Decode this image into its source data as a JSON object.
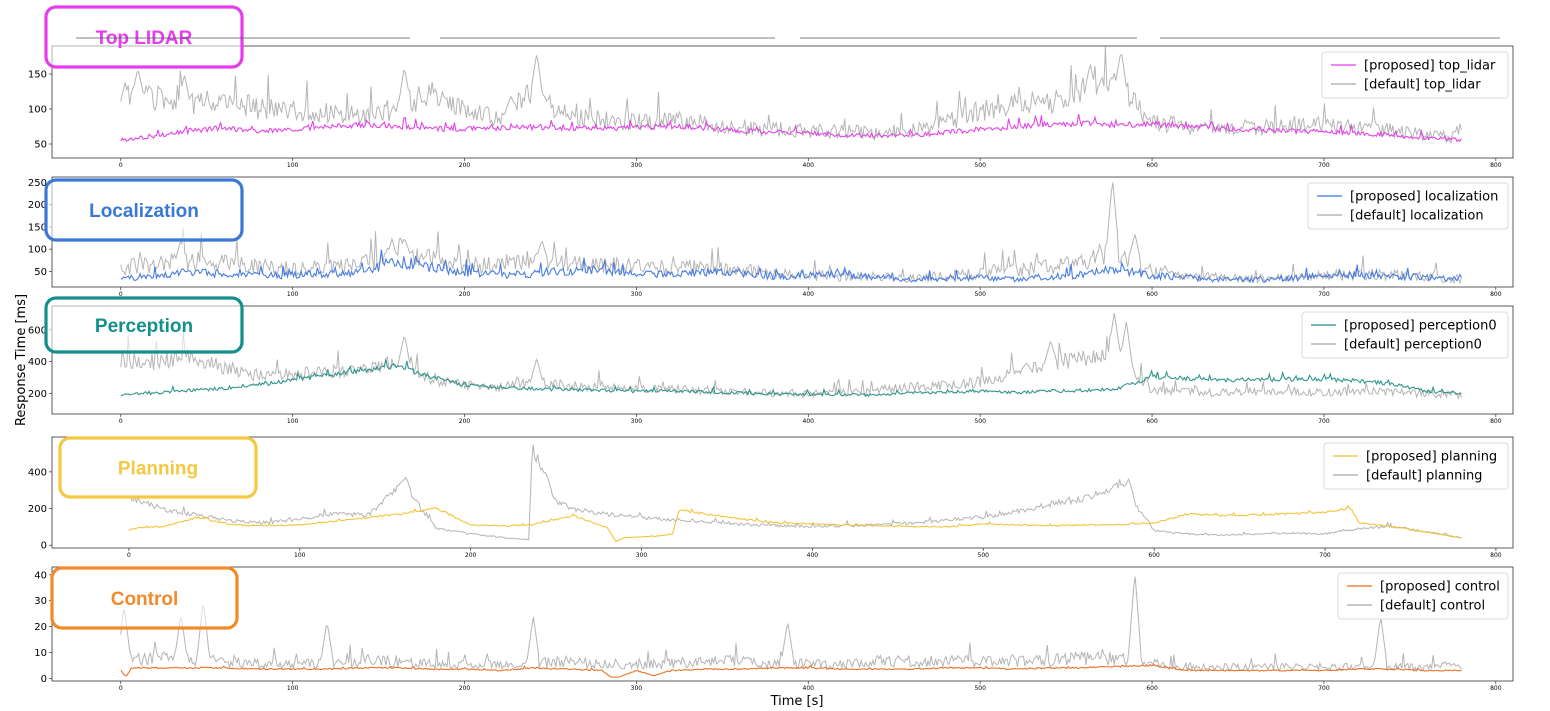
{
  "figure": {
    "ylabel": "Response Time [ms]",
    "xlabel": "Time [s]"
  },
  "chart_data": [
    {
      "type": "line",
      "callout": "Top LIDAR",
      "callout_color": "#e63cf0",
      "xlim": [
        -40,
        810
      ],
      "ylim": [
        30,
        190
      ],
      "x_ticks": [
        0,
        100,
        200,
        300,
        400,
        500,
        600,
        700,
        800
      ],
      "y_ticks": [
        50,
        100,
        150
      ],
      "legend_position": "upper right",
      "series": [
        {
          "name": "[proposed] top_lidar",
          "color": "#e23be6",
          "x": [
            0,
            20,
            40,
            60,
            80,
            100,
            120,
            140,
            160,
            180,
            200,
            220,
            240,
            260,
            280,
            300,
            320,
            340,
            360,
            380,
            400,
            420,
            440,
            460,
            480,
            500,
            520,
            540,
            560,
            580,
            600,
            620,
            640,
            660,
            680,
            700,
            720,
            740,
            760,
            780
          ],
          "y": [
            55,
            60,
            68,
            72,
            66,
            70,
            74,
            76,
            74,
            71,
            70,
            72,
            73,
            72,
            71,
            73,
            74,
            72,
            68,
            66,
            65,
            62,
            61,
            62,
            65,
            70,
            73,
            77,
            78,
            76,
            77,
            74,
            71,
            69,
            68,
            66,
            64,
            62,
            58,
            55
          ]
        },
        {
          "name": "[default] top_lidar",
          "color": "#a8a8a8",
          "x": [
            0,
            20,
            40,
            60,
            80,
            100,
            120,
            140,
            160,
            180,
            200,
            220,
            240,
            260,
            280,
            300,
            320,
            340,
            360,
            380,
            400,
            420,
            440,
            460,
            480,
            500,
            520,
            540,
            560,
            580,
            600,
            620,
            640,
            660,
            680,
            700,
            720,
            740,
            760,
            780
          ],
          "y": [
            115,
            110,
            100,
            108,
            96,
            92,
            90,
            86,
            95,
            118,
            92,
            84,
            118,
            86,
            80,
            78,
            80,
            76,
            70,
            68,
            66,
            64,
            63,
            66,
            76,
            92,
            100,
            106,
            112,
            128,
            76,
            72,
            68,
            70,
            74,
            72,
            70,
            66,
            62,
            56
          ]
        }
      ],
      "peaks": [
        {
          "series": 1,
          "x": [
            10,
            37,
            165,
            227,
            242,
            564,
            582
          ],
          "y": [
            158,
            150,
            160,
            118,
            180,
            165,
            184
          ]
        }
      ]
    },
    {
      "type": "line",
      "callout": "Localization",
      "callout_color": "#3a78d6",
      "xlim": [
        -40,
        810
      ],
      "ylim": [
        15,
        262
      ],
      "x_ticks": [
        0,
        100,
        200,
        300,
        400,
        500,
        600,
        700,
        800
      ],
      "y_ticks": [
        50,
        100,
        150,
        200,
        250
      ],
      "legend_position": "upper right",
      "series": [
        {
          "name": "[proposed] localization",
          "color": "#3f76e0",
          "x": [
            0,
            20,
            40,
            60,
            80,
            100,
            120,
            140,
            160,
            180,
            200,
            220,
            240,
            260,
            280,
            300,
            320,
            340,
            360,
            380,
            400,
            420,
            440,
            460,
            480,
            500,
            520,
            540,
            560,
            580,
            600,
            620,
            640,
            660,
            680,
            700,
            720,
            740,
            760,
            780
          ],
          "y": [
            30,
            40,
            45,
            42,
            38,
            40,
            42,
            45,
            70,
            55,
            45,
            40,
            42,
            48,
            50,
            42,
            40,
            46,
            44,
            35,
            40,
            42,
            35,
            30,
            32,
            34,
            30,
            36,
            40,
            52,
            38,
            34,
            30,
            30,
            32,
            38,
            40,
            38,
            34,
            30
          ]
        },
        {
          "name": "[default] localization",
          "color": "#a8a8a8",
          "x": [
            0,
            20,
            40,
            60,
            80,
            100,
            120,
            140,
            160,
            180,
            200,
            220,
            240,
            260,
            280,
            300,
            320,
            340,
            360,
            380,
            400,
            420,
            440,
            460,
            480,
            500,
            520,
            540,
            560,
            580,
            600,
            620,
            640,
            660,
            680,
            700,
            720,
            740,
            760,
            780
          ],
          "y": [
            55,
            60,
            68,
            62,
            55,
            52,
            55,
            58,
            90,
            70,
            58,
            60,
            72,
            62,
            58,
            55,
            52,
            55,
            50,
            40,
            38,
            36,
            34,
            33,
            36,
            42,
            48,
            55,
            62,
            90,
            45,
            35,
            32,
            30,
            34,
            36,
            40,
            38,
            34,
            30
          ]
        }
      ],
      "peaks": [
        {
          "series": 1,
          "x": [
            35,
            165,
            245,
            577,
            590
          ],
          "y": [
            120,
            125,
            120,
            258,
            135
          ]
        }
      ]
    },
    {
      "type": "line",
      "callout": "Perception",
      "callout_color": "#13908c",
      "xlim": [
        -40,
        810
      ],
      "ylim": [
        70,
        750
      ],
      "x_ticks": [
        0,
        100,
        200,
        300,
        400,
        500,
        600,
        700,
        800
      ],
      "y_ticks": [
        200,
        400,
        600
      ],
      "legend_position": "upper right",
      "series": [
        {
          "name": "[proposed] perception0",
          "color": "#268f88",
          "x": [
            0,
            20,
            40,
            60,
            80,
            100,
            120,
            140,
            160,
            180,
            200,
            220,
            240,
            260,
            280,
            300,
            320,
            340,
            360,
            380,
            400,
            420,
            440,
            460,
            480,
            500,
            520,
            540,
            560,
            580,
            600,
            620,
            640,
            660,
            680,
            700,
            720,
            740,
            760,
            780
          ],
          "y": [
            190,
            200,
            215,
            230,
            250,
            280,
            310,
            340,
            370,
            300,
            250,
            235,
            225,
            220,
            215,
            210,
            215,
            205,
            200,
            195,
            192,
            190,
            185,
            200,
            205,
            210,
            205,
            210,
            215,
            225,
            300,
            290,
            280,
            280,
            285,
            285,
            275,
            255,
            210,
            195
          ]
        },
        {
          "name": "[default] perception0",
          "color": "#a8a8a8",
          "x": [
            0,
            20,
            40,
            60,
            80,
            100,
            120,
            140,
            160,
            180,
            200,
            220,
            240,
            260,
            280,
            300,
            320,
            340,
            360,
            380,
            400,
            420,
            440,
            460,
            480,
            500,
            520,
            540,
            560,
            580,
            600,
            620,
            640,
            660,
            680,
            700,
            720,
            740,
            760,
            780
          ],
          "y": [
            400,
            380,
            420,
            350,
            300,
            310,
            320,
            330,
            380,
            280,
            240,
            230,
            260,
            240,
            235,
            225,
            220,
            210,
            200,
            195,
            190,
            195,
            210,
            230,
            240,
            260,
            320,
            380,
            400,
            420,
            210,
            200,
            195,
            200,
            205,
            200,
            205,
            200,
            190,
            185
          ]
        }
      ],
      "peaks": [
        {
          "series": 1,
          "x": [
            165,
            242,
            541,
            578,
            585
          ],
          "y": [
            570,
            420,
            530,
            710,
            650
          ]
        }
      ]
    },
    {
      "type": "line",
      "callout": "Planning",
      "callout_color": "#f5c842",
      "xlim": [
        -45,
        810
      ],
      "ylim": [
        -15,
        590
      ],
      "x_ticks": [
        0,
        100,
        200,
        300,
        400,
        500,
        600,
        700,
        800
      ],
      "y_ticks": [
        0,
        200,
        400
      ],
      "legend_position": "upper right",
      "series": [
        {
          "name": "[proposed] planning",
          "color": "#f4c030",
          "x": [
            0,
            5,
            20,
            40,
            60,
            80,
            100,
            120,
            140,
            160,
            180,
            200,
            220,
            235,
            260,
            280,
            285,
            290,
            300,
            310,
            318,
            322,
            340,
            360,
            380,
            400,
            420,
            440,
            460,
            480,
            500,
            520,
            540,
            560,
            580,
            600,
            620,
            640,
            660,
            680,
            700,
            715,
            720,
            740,
            760,
            780
          ],
          "y": [
            80,
            95,
            100,
            150,
            110,
            105,
            110,
            130,
            150,
            170,
            200,
            110,
            105,
            110,
            160,
            95,
            20,
            40,
            45,
            50,
            60,
            190,
            165,
            140,
            120,
            115,
            110,
            105,
            100,
            100,
            115,
            110,
            105,
            110,
            112,
            120,
            170,
            160,
            165,
            170,
            180,
            200,
            120,
            100,
            70,
            40
          ]
        },
        {
          "name": "[default] planning",
          "color": "#a8a8a8",
          "x": [
            0,
            20,
            40,
            60,
            80,
            100,
            120,
            140,
            160,
            180,
            200,
            220,
            234,
            236,
            250,
            260,
            280,
            300,
            320,
            340,
            360,
            380,
            400,
            420,
            440,
            460,
            480,
            500,
            520,
            540,
            560,
            580,
            600,
            620,
            640,
            660,
            680,
            700,
            720,
            740,
            760,
            780
          ],
          "y": [
            260,
            190,
            160,
            130,
            120,
            140,
            170,
            160,
            330,
            90,
            60,
            40,
            30,
            520,
            240,
            190,
            165,
            150,
            135,
            125,
            110,
            105,
            100,
            105,
            110,
            120,
            135,
            150,
            180,
            220,
            250,
            330,
            80,
            60,
            55,
            60,
            65,
            60,
            90,
            100,
            70,
            40
          ]
        }
      ],
      "peaks": [
        {
          "series": 1,
          "x": [
            162,
            243,
            585
          ],
          "y": [
            370,
            400,
            360
          ]
        }
      ]
    },
    {
      "type": "line",
      "callout": "Control",
      "callout_color": "#f38a2a",
      "xlim": [
        -40,
        810
      ],
      "ylim": [
        -1,
        43
      ],
      "x_ticks": [
        0,
        100,
        200,
        300,
        400,
        500,
        600,
        700,
        800
      ],
      "y_ticks": [
        0,
        10,
        20,
        30,
        40
      ],
      "legend_position": "upper right",
      "series": [
        {
          "name": "[proposed] control",
          "color": "#ea6a1e",
          "x": [
            0,
            3,
            6,
            20,
            40,
            60,
            80,
            100,
            120,
            140,
            160,
            180,
            200,
            220,
            240,
            260,
            280,
            285,
            290,
            300,
            310,
            320,
            340,
            360,
            380,
            400,
            420,
            440,
            460,
            480,
            500,
            520,
            540,
            560,
            580,
            600,
            620,
            640,
            660,
            680,
            700,
            720,
            740,
            760,
            780
          ],
          "y": [
            3,
            0.5,
            4,
            4,
            4,
            4,
            3.5,
            3.5,
            3.5,
            4,
            4,
            3.5,
            3.5,
            3,
            4,
            3.5,
            3,
            0.5,
            0.5,
            3,
            1,
            3,
            3.5,
            3.5,
            4,
            4,
            3.5,
            3.5,
            3.5,
            4,
            4,
            3.5,
            4,
            4,
            4.5,
            5,
            3,
            3,
            3,
            3,
            3,
            3.5,
            3.5,
            3,
            3
          ]
        },
        {
          "name": "[default] control",
          "color": "#a8a8a8",
          "x": [
            0,
            20,
            40,
            60,
            80,
            100,
            120,
            140,
            160,
            180,
            200,
            220,
            240,
            260,
            280,
            300,
            320,
            340,
            360,
            380,
            400,
            420,
            440,
            460,
            480,
            500,
            520,
            540,
            560,
            580,
            600,
            620,
            640,
            660,
            680,
            700,
            720,
            740,
            760,
            780
          ],
          "y": [
            6,
            7,
            6,
            6,
            5,
            5,
            5,
            6,
            6,
            5,
            5,
            5,
            5,
            6,
            5,
            5,
            5,
            6,
            6,
            5,
            5,
            5,
            6,
            6,
            6,
            6,
            6,
            6,
            7,
            7,
            5,
            4,
            4,
            4,
            4,
            4,
            4,
            4,
            4,
            4
          ]
        }
      ],
      "peaks": [
        {
          "series": 1,
          "x": [
            2,
            35,
            48,
            120,
            240,
            388,
            590,
            733
          ],
          "y": [
            28,
            25,
            30,
            22,
            24,
            22,
            41,
            24
          ]
        }
      ]
    }
  ]
}
